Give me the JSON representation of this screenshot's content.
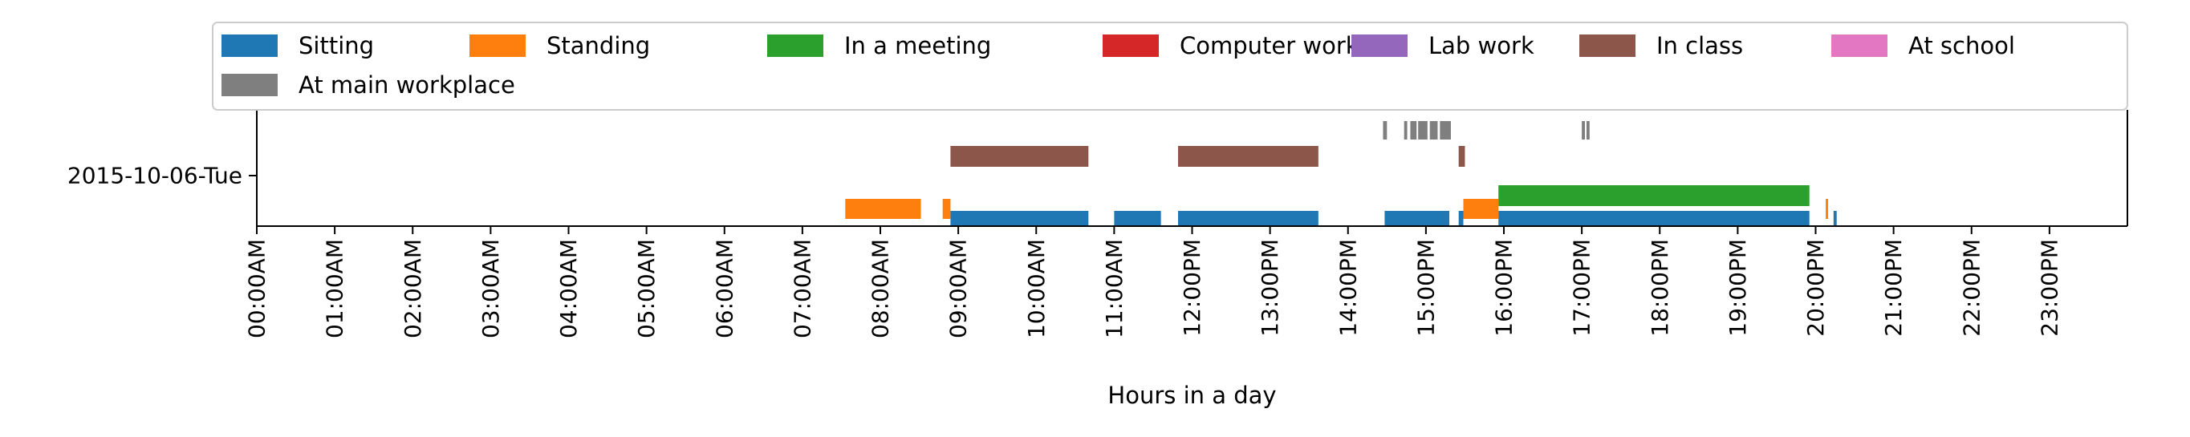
{
  "chart_data": {
    "type": "timeline",
    "title": "",
    "xlabel": "Hours in a day",
    "ylabel": "",
    "row_label": "2015-10-06-Tue",
    "xlim": [
      0,
      24
    ],
    "x_ticks": [
      "00:00AM",
      "01:00AM",
      "02:00AM",
      "03:00AM",
      "04:00AM",
      "05:00AM",
      "06:00AM",
      "07:00AM",
      "08:00AM",
      "09:00AM",
      "10:00AM",
      "11:00AM",
      "12:00PM",
      "13:00PM",
      "14:00PM",
      "15:00PM",
      "16:00PM",
      "17:00PM",
      "18:00PM",
      "19:00PM",
      "20:00PM",
      "21:00PM",
      "22:00PM",
      "23:00PM"
    ],
    "legend_position": "top",
    "series": [
      {
        "name": "Sitting",
        "color": "#1f77b4",
        "intervals": [
          [
            8.9,
            10.67
          ],
          [
            11.0,
            11.6
          ],
          [
            11.82,
            13.62
          ],
          [
            14.47,
            15.3
          ],
          [
            15.42,
            15.48
          ],
          [
            15.93,
            19.92
          ],
          [
            20.23,
            20.27
          ]
        ]
      },
      {
        "name": "Standing",
        "color": "#ff7f0e",
        "intervals": [
          [
            7.55,
            8.52
          ],
          [
            8.8,
            8.9
          ],
          [
            15.48,
            15.93
          ],
          [
            20.13,
            20.16
          ]
        ]
      },
      {
        "name": "In a meeting",
        "color": "#2ca02c",
        "intervals": [
          [
            15.93,
            19.92
          ]
        ]
      },
      {
        "name": "Computer work",
        "color": "#d62728",
        "intervals": []
      },
      {
        "name": "Lab work",
        "color": "#9467bd",
        "intervals": []
      },
      {
        "name": "In class",
        "color": "#8c564b",
        "intervals": [
          [
            8.9,
            10.67
          ],
          [
            11.82,
            13.62
          ],
          [
            15.42,
            15.5
          ]
        ]
      },
      {
        "name": "At school",
        "color": "#e377c2",
        "intervals": []
      },
      {
        "name": "At main workplace",
        "color": "#7f7f7f",
        "intervals": [
          [
            14.45,
            14.5
          ],
          [
            14.72,
            14.76
          ],
          [
            14.8,
            14.88
          ],
          [
            14.9,
            15.02
          ],
          [
            15.05,
            15.15
          ],
          [
            15.18,
            15.32
          ],
          [
            17.0,
            17.04
          ],
          [
            17.06,
            17.1
          ]
        ]
      }
    ]
  }
}
